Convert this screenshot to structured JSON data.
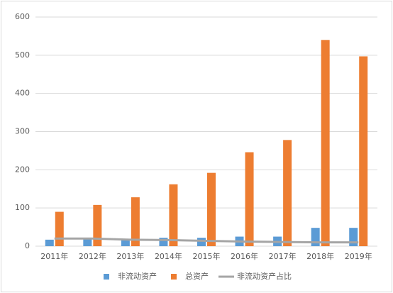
{
  "chart_data": {
    "type": "bar",
    "categories": [
      "2011年",
      "2012年",
      "2013年",
      "2014年",
      "2015年",
      "2016年",
      "2017年",
      "2018年",
      "2019年"
    ],
    "series": [
      {
        "name": "非流动资产",
        "color": "#5b9bd5",
        "values": [
          17,
          18,
          17,
          22,
          22,
          25,
          25,
          48,
          48
        ]
      },
      {
        "name": "总资产",
        "color": "#ed7d31",
        "values": [
          90,
          108,
          128,
          162,
          192,
          246,
          278,
          540,
          497
        ]
      },
      {
        "name": "非流动资产占比",
        "color": "#a5a5a5",
        "type": "line",
        "values": [
          20,
          20,
          17,
          16,
          14,
          12,
          11,
          10,
          10
        ]
      }
    ],
    "ylim": [
      0,
      600
    ],
    "yticks": [
      0,
      100,
      200,
      300,
      400,
      500,
      600
    ],
    "grid": true,
    "legend": "bottom"
  }
}
